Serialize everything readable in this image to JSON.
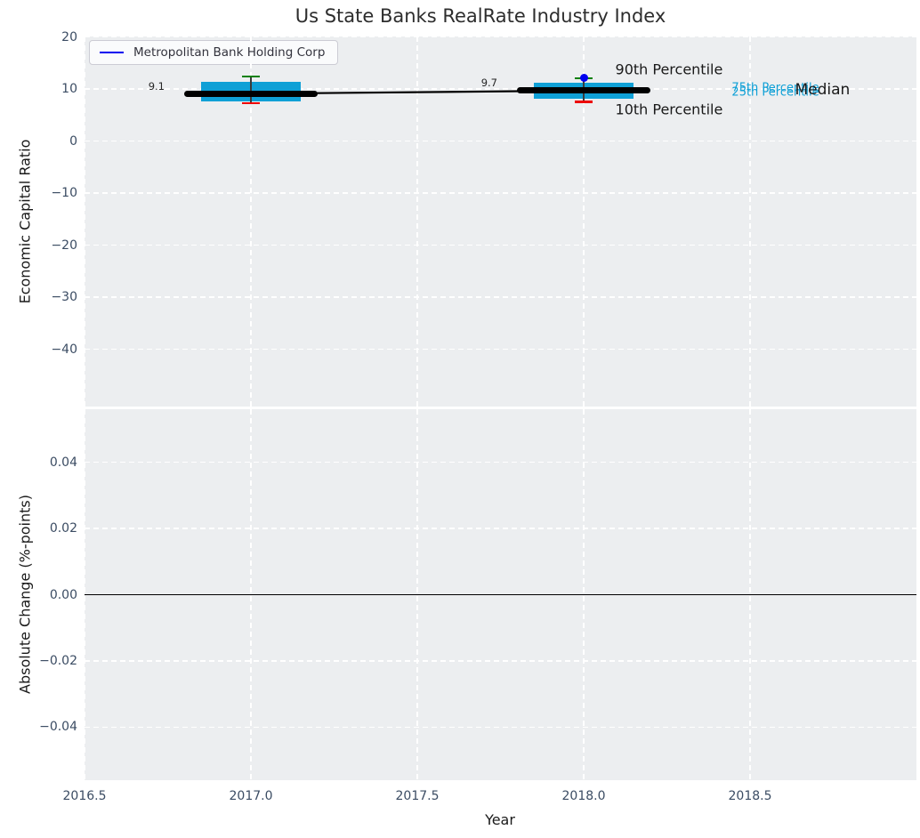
{
  "legend": {
    "label": "Metropolitan Bank Holding Corp",
    "line_color": "#0000f0"
  },
  "colors": {
    "figure_bg": "#ffffff",
    "axes_bg": "#eceef0",
    "grid": "#ffffff",
    "tick_label": "#3b4c63",
    "box_fill": "#0fa0d6",
    "p90_cap": "#088008",
    "p10_cap": "#ed0000",
    "median_line": "#000000",
    "whisker_line": "#3a3a3a",
    "company_point": "#0000f0",
    "zero_line": "#000000",
    "annotation_dark": "#1a1a1a",
    "annotation_teal": "#0fa0d6"
  },
  "chart_data": [
    {
      "type": "boxplot",
      "title": "Us State Banks RealRate Industry Index",
      "ylabel": "Economic Capital Ratio",
      "xlim": [
        2016.5,
        2019.0
      ],
      "ylim": [
        -51.0,
        20.1
      ],
      "grid": true,
      "legend_position": "upper left",
      "x_ticks": [
        {
          "value": 2016.5,
          "label": "2016.5"
        },
        {
          "value": 2017.0,
          "label": "2017.0"
        },
        {
          "value": 2017.5,
          "label": "2017.5"
        },
        {
          "value": 2018.0,
          "label": "2018.0"
        },
        {
          "value": 2018.5,
          "label": "2018.5"
        }
      ],
      "y_ticks": [
        {
          "value": 20,
          "label": "20"
        },
        {
          "value": 10,
          "label": "10"
        },
        {
          "value": 0,
          "label": "0"
        },
        {
          "value": -10,
          "label": "−10"
        },
        {
          "value": -20,
          "label": "−20"
        },
        {
          "value": -30,
          "label": "−30"
        },
        {
          "value": -40,
          "label": "−40"
        }
      ],
      "box_width": 0.3,
      "median_segment_halfwidth": 0.2,
      "cap_halfwidth": 0.028,
      "boxes": [
        {
          "x": 2017,
          "median": 9.1,
          "q1": 7.7,
          "q3": 11.4,
          "p10": 7.3,
          "p90": 12.4,
          "median_label": "9.1"
        },
        {
          "x": 2018,
          "median": 9.7,
          "q1": 8.2,
          "q3": 11.2,
          "p10": 7.5,
          "p90": 12.1,
          "median_label": "9.7"
        }
      ],
      "median_trend": {
        "x": [
          2017,
          2018
        ],
        "y": [
          9.1,
          9.7
        ]
      },
      "company_series": {
        "name": "Metropolitan Bank Holding Corp",
        "points": [
          {
            "x": 2018,
            "y": 12.1
          }
        ]
      },
      "annotations": [
        {
          "text": "90th Percentile",
          "x": 2018.095,
          "y": 13.8,
          "color": "#1a1a1a",
          "size": 16
        },
        {
          "text": "10th Percentile",
          "x": 2018.095,
          "y": 6.1,
          "color": "#1a1a1a",
          "size": 16
        },
        {
          "text": "75th Percentile",
          "x": 2018.445,
          "y": 10.15,
          "color": "#0fa0d6",
          "size": 13
        },
        {
          "text": "25th Percentile",
          "x": 2018.445,
          "y": 9.4,
          "color": "#0fa0d6",
          "size": 13
        },
        {
          "text": "Median",
          "x": 2018.635,
          "y": 9.85,
          "color": "#1a1a1a",
          "size": 17
        }
      ]
    },
    {
      "type": "line",
      "ylabel": "Absolute Change (%-points)",
      "xlabel": "Year",
      "xlim": [
        2016.5,
        2019.0
      ],
      "ylim": [
        -0.056,
        0.056
      ],
      "grid": true,
      "x_ticks": [
        {
          "value": 2016.5,
          "label": "2016.5"
        },
        {
          "value": 2017.0,
          "label": "2017.0"
        },
        {
          "value": 2017.5,
          "label": "2017.5"
        },
        {
          "value": 2018.0,
          "label": "2018.0"
        },
        {
          "value": 2018.5,
          "label": "2018.5"
        }
      ],
      "y_ticks": [
        {
          "value": 0.04,
          "label": "0.04"
        },
        {
          "value": 0.02,
          "label": "0.02"
        },
        {
          "value": 0.0,
          "label": "0.00"
        },
        {
          "value": -0.02,
          "label": "−0.02"
        },
        {
          "value": -0.04,
          "label": "−0.04"
        }
      ],
      "zero_line": {
        "y": 0.0
      }
    }
  ]
}
